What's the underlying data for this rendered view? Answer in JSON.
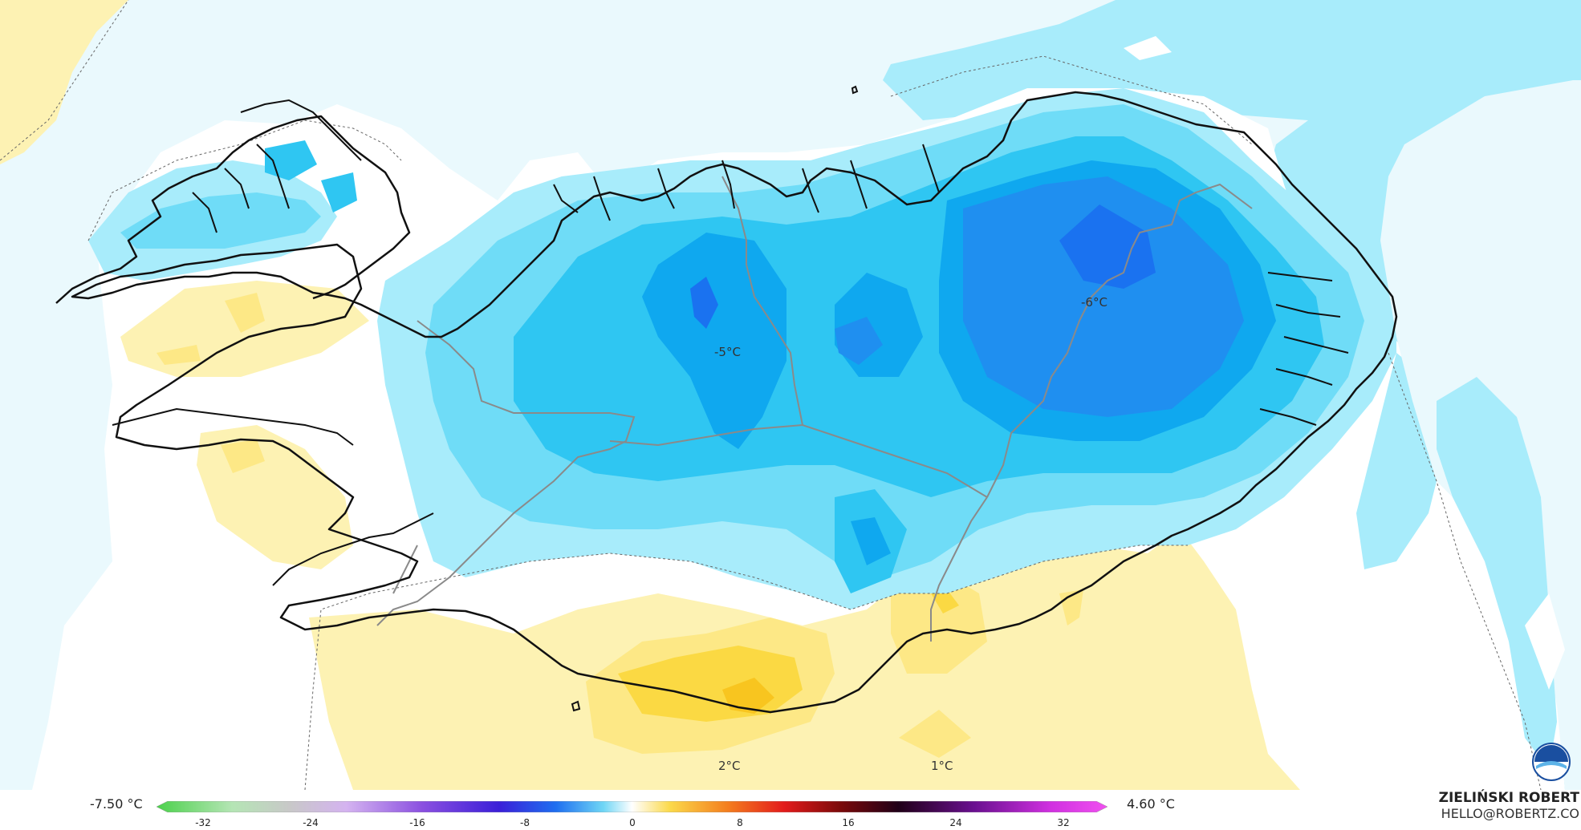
{
  "map": {
    "labels": [
      {
        "id": "label-west",
        "text": "-5°C"
      },
      {
        "id": "label-east",
        "text": "-6°C"
      },
      {
        "id": "label-south-1",
        "text": "2°C"
      },
      {
        "id": "label-south-2",
        "text": "1°C"
      }
    ],
    "colors": {
      "ocean_cold": "#a8ecfb",
      "ocean_pale": "#eaf9fd",
      "white_band": "#ffffff",
      "land_cold_1": "#6fdcf7",
      "land_cold_2": "#2fc6f2",
      "land_cold_3": "#0fa8ef",
      "land_cold_4": "#1f8ff0",
      "land_cold_5": "#1a72f0",
      "warm_1": "#fdf2b3",
      "warm_2": "#fde886",
      "warm_3": "#fbd943",
      "warm_4": "#f8c51f",
      "coast": "#111111",
      "border": "#8a8a8a"
    },
    "icons": [
      "noaa-logo-icon"
    ]
  },
  "legend": {
    "min_label": "-7.50 °C",
    "max_label": "4.60 °C",
    "ticks": [
      "-32",
      "-24",
      "-16",
      "-8",
      "0",
      "8",
      "16",
      "24",
      "32"
    ],
    "gradient_stops": [
      "#4bd14b",
      "#7fdd7f",
      "#b5e5b5",
      "#c8c8c8",
      "#d4b3f0",
      "#b07fe8",
      "#8a4fe0",
      "#6a2ed8",
      "#3b1fd8",
      "#1f3be8",
      "#1f6ff0",
      "#2fa5f2",
      "#6fd6f5",
      "#b8ecf8",
      "#ffffff",
      "#fdf1b0",
      "#fbd94a",
      "#f8a91f",
      "#f47f1f",
      "#ef4a1f",
      "#e31b1b",
      "#b01010",
      "#7a0a0a",
      "#3b0505",
      "#200018",
      "#3a0850",
      "#6a1090",
      "#9a20c0",
      "#d030e0",
      "#f050f0"
    ]
  },
  "credit": {
    "name": "ZIELIŃSKI ROBERT",
    "email": "HELLO@ROBERTZ.CO"
  }
}
